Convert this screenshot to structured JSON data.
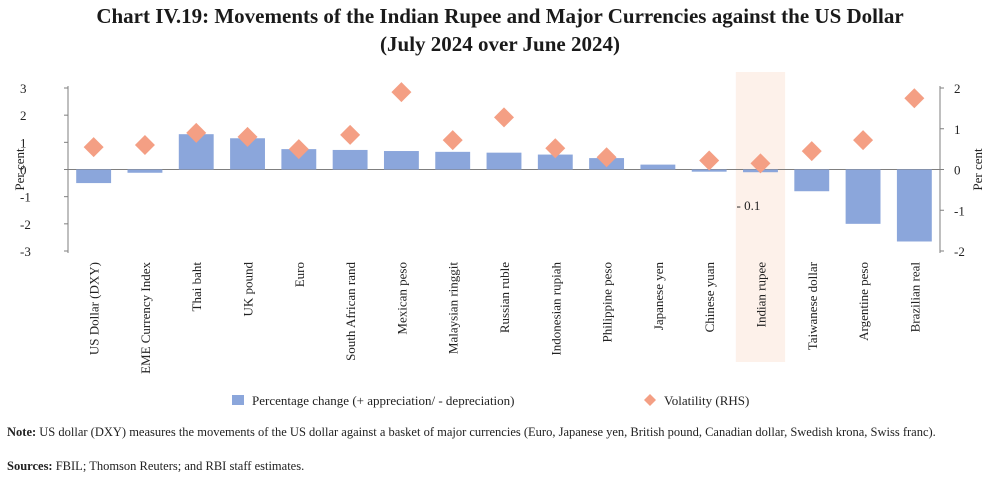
{
  "title_line1": "Chart IV.19: Movements of the Indian Rupee and Major Currencies against the US Dollar",
  "title_line2": "(July 2024 over June 2024)",
  "colors": {
    "bar": "#8ba6db",
    "diamond": "#f49f84",
    "highlight": "#fdf1ea",
    "axis": "#7f7f7f"
  },
  "chart_data": {
    "type": "bar",
    "categories": [
      "US Dollar (DXY)",
      "EME Currency Index",
      "Thai baht",
      "UK pound",
      "Euro",
      "South African rand",
      "Mexican peso",
      "Malaysian ringgit",
      "Russian ruble",
      "Indonesian rupiah",
      "Philippine peso",
      "Japanese yen",
      "Chinese yuan",
      "Indian rupee",
      "Taiwanese dollar",
      "Argentine peso",
      "Brazilian real"
    ],
    "series": [
      {
        "name": "Percentage change (+ appreciation/ - depreciation)",
        "axis": "left",
        "kind": "bar",
        "values": [
          -0.5,
          -0.12,
          1.3,
          1.15,
          0.75,
          0.72,
          0.68,
          0.65,
          0.62,
          0.55,
          0.42,
          0.18,
          -0.08,
          -0.1,
          -0.8,
          -2.0,
          -2.65
        ]
      },
      {
        "name": "Volatility (RHS)",
        "axis": "right",
        "kind": "diamond",
        "values": [
          0.55,
          0.6,
          0.9,
          0.8,
          0.5,
          0.85,
          1.9,
          0.72,
          1.28,
          0.52,
          0.3,
          null,
          0.22,
          0.15,
          0.45,
          0.72,
          1.75
        ]
      }
    ],
    "ylabel": "Per cent",
    "ylabel_right": "Per cent",
    "ylim": [
      -3,
      3
    ],
    "ylim_right": [
      -2,
      2
    ],
    "yticks": [
      "3",
      "2",
      "1",
      "0",
      "-1",
      "-2",
      "-3"
    ],
    "yticks_right": [
      "2",
      "1",
      "0",
      "-1",
      "-2"
    ],
    "highlight_category": "Indian rupee",
    "annotation": "- 0.1",
    "legend_position": "bottom"
  },
  "note_label": "Note:",
  "note_text": "US dollar (DXY) measures the movements of the US dollar against a basket of major currencies (Euro, Japanese yen, British pound, Canadian dollar, Swedish krona, Swiss franc).",
  "sources_label": "Sources:",
  "sources_text": "FBIL; Thomson Reuters; and RBI staff estimates."
}
